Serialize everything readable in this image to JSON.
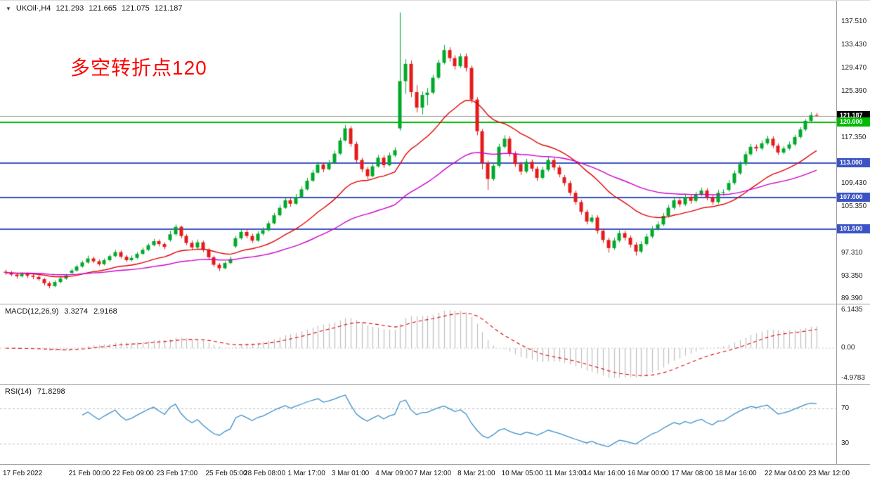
{
  "header": {
    "dropdown_icon": "▼",
    "symbol": "UKOil·,H4",
    "open": "121.293",
    "high": "121.665",
    "low": "121.075",
    "close": "121.187"
  },
  "annotation": {
    "text": "多空转折点120",
    "color": "#fe0000"
  },
  "colors": {
    "background": "#ffffff",
    "candle_up": "#00a82a",
    "candle_down": "#e51a1a",
    "separator": "#9e9e9e",
    "axis_text": "#1a1a1a",
    "current_price_line": "#9a9a9a"
  },
  "chart_data": {
    "type": "candlestick",
    "symbol": "UKOil",
    "timeframe": "H4",
    "price_axis": {
      "max": 137.51,
      "min": 89.39,
      "ticks": [
        "137.510",
        "133.430",
        "129.470",
        "125.390",
        "117.350",
        "109.430",
        "105.350",
        "97.310",
        "93.350",
        "89.390"
      ]
    },
    "current_price": {
      "label": "121.187",
      "value": 121.187,
      "badge_bg": "#000000"
    },
    "levels": [
      {
        "label": "120.000",
        "value": 120.0,
        "color": "#00bb00",
        "width": 2
      },
      {
        "label": "113.000",
        "value": 113.0,
        "color": "#3b53c4",
        "width": 2
      },
      {
        "label": "107.000",
        "value": 107.0,
        "color": "#3b53c4",
        "width": 2
      },
      {
        "label": "101.500",
        "value": 101.5,
        "color": "#3b53c4",
        "width": 2
      }
    ],
    "moving_averages": [
      {
        "name": "ma-fast",
        "period": 21,
        "color": "#e00000"
      },
      {
        "name": "ma-slow",
        "period": 55,
        "color": "#cc00cc"
      }
    ],
    "time_labels": [
      {
        "idx": 0,
        "label": "17 Feb 2022"
      },
      {
        "idx": 12,
        "label": "21 Feb 00:00"
      },
      {
        "idx": 20,
        "label": "22 Feb 09:00"
      },
      {
        "idx": 28,
        "label": "23 Feb 17:00"
      },
      {
        "idx": 37,
        "label": "25 Feb 05:00"
      },
      {
        "idx": 44,
        "label": "28 Feb 08:00"
      },
      {
        "idx": 52,
        "label": "1 Mar 17:00"
      },
      {
        "idx": 60,
        "label": "3 Mar 01:00"
      },
      {
        "idx": 68,
        "label": "4 Mar 09:00"
      },
      {
        "idx": 75,
        "label": "7 Mar 12:00"
      },
      {
        "idx": 83,
        "label": "8 Mar 21:00"
      },
      {
        "idx": 91,
        "label": "10 Mar 05:00"
      },
      {
        "idx": 99,
        "label": "11 Mar 13:00"
      },
      {
        "idx": 106,
        "label": "14 Mar 16:00"
      },
      {
        "idx": 114,
        "label": "16 Mar 00:00"
      },
      {
        "idx": 122,
        "label": "17 Mar 08:00"
      },
      {
        "idx": 130,
        "label": "18 Mar 16:00"
      },
      {
        "idx": 139,
        "label": "22 Mar 04:00"
      },
      {
        "idx": 147,
        "label": "23 Mar 12:00"
      }
    ],
    "candles": [
      [
        94.1,
        94.45,
        93.55,
        93.9
      ],
      [
        93.9,
        94.2,
        93.3,
        93.6
      ],
      [
        93.6,
        93.85,
        92.9,
        93.3
      ],
      [
        93.3,
        94.0,
        93.1,
        93.7
      ],
      [
        93.7,
        93.95,
        93.0,
        93.4
      ],
      [
        93.4,
        93.7,
        92.8,
        93.2
      ],
      [
        93.2,
        93.5,
        92.5,
        92.8
      ],
      [
        92.8,
        93.0,
        91.7,
        92.1
      ],
      [
        92.1,
        92.4,
        91.2,
        91.6
      ],
      [
        91.6,
        92.6,
        91.4,
        92.3
      ],
      [
        92.3,
        93.2,
        92.1,
        92.9
      ],
      [
        92.9,
        93.7,
        92.7,
        93.4
      ],
      [
        93.9,
        94.6,
        93.6,
        94.3
      ],
      [
        94.3,
        95.3,
        94.1,
        95.0
      ],
      [
        95.0,
        96.0,
        94.8,
        95.7
      ],
      [
        95.7,
        96.9,
        95.5,
        96.4
      ],
      [
        96.4,
        96.7,
        95.6,
        95.9
      ],
      [
        95.9,
        96.2,
        95.1,
        95.4
      ],
      [
        95.4,
        96.4,
        95.2,
        96.1
      ],
      [
        96.1,
        97.1,
        95.9,
        96.8
      ],
      [
        96.8,
        97.9,
        96.6,
        97.5
      ],
      [
        97.5,
        97.8,
        96.4,
        96.7
      ],
      [
        96.7,
        97.0,
        95.8,
        96.1
      ],
      [
        96.1,
        96.9,
        95.9,
        96.5
      ],
      [
        96.5,
        97.5,
        96.3,
        97.2
      ],
      [
        97.2,
        98.3,
        97.0,
        97.9
      ],
      [
        97.9,
        99.0,
        97.7,
        98.7
      ],
      [
        98.7,
        99.8,
        98.5,
        99.4
      ],
      [
        99.4,
        99.7,
        98.5,
        98.9
      ],
      [
        98.9,
        99.2,
        98.0,
        98.4
      ],
      [
        99.6,
        101.2,
        99.3,
        100.6
      ],
      [
        100.6,
        102.3,
        100.3,
        101.9
      ],
      [
        101.9,
        102.1,
        99.9,
        100.3
      ],
      [
        100.3,
        100.6,
        98.7,
        99.1
      ],
      [
        99.1,
        99.5,
        97.9,
        98.3
      ],
      [
        98.3,
        99.7,
        98.1,
        99.2
      ],
      [
        99.2,
        99.5,
        97.5,
        97.9
      ],
      [
        97.9,
        98.2,
        96.2,
        96.6
      ],
      [
        96.6,
        96.9,
        94.9,
        95.3
      ],
      [
        95.3,
        95.6,
        94.2,
        94.7
      ],
      [
        94.7,
        95.9,
        94.5,
        95.6
      ],
      [
        95.6,
        96.7,
        95.4,
        96.3
      ],
      [
        98.5,
        100.3,
        98.2,
        99.9
      ],
      [
        99.9,
        101.5,
        99.7,
        101.0
      ],
      [
        101.0,
        101.4,
        99.9,
        100.3
      ],
      [
        100.3,
        100.7,
        99.1,
        99.5
      ],
      [
        99.5,
        101.1,
        99.3,
        100.7
      ],
      [
        100.7,
        101.8,
        100.4,
        101.3
      ],
      [
        101.3,
        102.9,
        101.1,
        102.5
      ],
      [
        102.5,
        104.3,
        102.3,
        103.9
      ],
      [
        103.9,
        105.7,
        103.7,
        105.2
      ],
      [
        105.2,
        107.0,
        105.0,
        106.5
      ],
      [
        106.5,
        106.9,
        105.4,
        105.9
      ],
      [
        105.9,
        107.6,
        105.7,
        107.1
      ],
      [
        107.1,
        108.9,
        106.9,
        108.4
      ],
      [
        108.4,
        110.4,
        108.2,
        109.9
      ],
      [
        109.9,
        111.8,
        109.7,
        111.3
      ],
      [
        111.3,
        113.2,
        111.1,
        112.7
      ],
      [
        112.7,
        113.1,
        111.4,
        111.9
      ],
      [
        111.9,
        113.5,
        111.7,
        113.0
      ],
      [
        113.0,
        115.1,
        112.8,
        114.6
      ],
      [
        114.6,
        117.4,
        114.4,
        116.9
      ],
      [
        116.9,
        119.6,
        116.7,
        119.0
      ],
      [
        119.0,
        119.4,
        115.8,
        116.3
      ],
      [
        116.3,
        116.7,
        113.0,
        113.5
      ],
      [
        113.5,
        113.9,
        111.4,
        111.9
      ],
      [
        111.9,
        112.3,
        110.2,
        110.7
      ],
      [
        110.7,
        112.9,
        110.5,
        112.4
      ],
      [
        112.4,
        114.4,
        112.2,
        113.9
      ],
      [
        113.9,
        114.3,
        112.1,
        112.6
      ],
      [
        112.6,
        114.8,
        112.4,
        114.3
      ],
      [
        114.3,
        115.7,
        114.0,
        115.2
      ],
      [
        119.0,
        139.13,
        118.6,
        127.2
      ],
      [
        127.2,
        131.0,
        125.0,
        130.2
      ],
      [
        130.2,
        130.8,
        124.4,
        125.3
      ],
      [
        125.3,
        126.5,
        121.8,
        122.6
      ],
      [
        122.6,
        125.4,
        121.4,
        124.8
      ],
      [
        124.8,
        126.0,
        123.0,
        125.2
      ],
      [
        125.2,
        128.3,
        124.9,
        127.8
      ],
      [
        127.8,
        130.9,
        127.5,
        130.4
      ],
      [
        130.4,
        133.5,
        130.1,
        132.6
      ],
      [
        132.6,
        133.1,
        130.6,
        131.2
      ],
      [
        131.2,
        131.7,
        129.2,
        129.8
      ],
      [
        129.8,
        132.0,
        129.5,
        131.5
      ],
      [
        131.5,
        132.0,
        128.9,
        129.5
      ],
      [
        129.5,
        129.9,
        123.4,
        124.0
      ],
      [
        124.0,
        124.4,
        117.8,
        118.5
      ],
      [
        118.5,
        118.9,
        111.9,
        113.0
      ],
      [
        113.0,
        113.4,
        108.3,
        110.2
      ],
      [
        110.2,
        113.1,
        109.9,
        112.5
      ],
      [
        112.5,
        116.3,
        112.2,
        115.8
      ],
      [
        115.8,
        117.8,
        115.5,
        117.2
      ],
      [
        117.2,
        117.6,
        114.1,
        114.6
      ],
      [
        114.6,
        115.0,
        112.3,
        112.8
      ],
      [
        112.8,
        113.2,
        110.9,
        111.5
      ],
      [
        111.5,
        113.7,
        111.2,
        113.2
      ],
      [
        113.2,
        113.6,
        111.5,
        112.0
      ],
      [
        112.0,
        112.4,
        109.9,
        110.4
      ],
      [
        110.4,
        112.3,
        110.1,
        111.8
      ],
      [
        111.8,
        114.0,
        111.5,
        113.5
      ],
      [
        113.5,
        113.9,
        111.7,
        112.2
      ],
      [
        112.2,
        112.6,
        110.5,
        111.0
      ],
      [
        110.5,
        110.9,
        109.0,
        109.5
      ],
      [
        109.5,
        109.9,
        107.3,
        107.8
      ],
      [
        107.8,
        108.2,
        105.7,
        106.2
      ],
      [
        106.2,
        106.6,
        104.0,
        104.5
      ],
      [
        104.5,
        104.9,
        102.3,
        102.8
      ],
      [
        102.8,
        104.0,
        102.5,
        103.5
      ],
      [
        103.5,
        103.9,
        100.7,
        101.2
      ],
      [
        101.2,
        101.6,
        99.1,
        99.6
      ],
      [
        99.6,
        100.0,
        97.4,
        98.2
      ],
      [
        98.2,
        100.0,
        97.9,
        99.5
      ],
      [
        99.5,
        101.3,
        99.2,
        100.8
      ],
      [
        100.8,
        101.2,
        99.5,
        100.0
      ],
      [
        100.0,
        100.4,
        98.3,
        98.8
      ],
      [
        98.8,
        99.2,
        96.9,
        97.6
      ],
      [
        97.6,
        99.4,
        97.3,
        98.9
      ],
      [
        98.9,
        100.7,
        98.6,
        100.2
      ],
      [
        100.2,
        102.0,
        99.9,
        101.5
      ],
      [
        101.5,
        102.8,
        101.2,
        102.3
      ],
      [
        102.3,
        104.3,
        102.0,
        103.8
      ],
      [
        103.8,
        105.7,
        103.5,
        105.2
      ],
      [
        105.2,
        107.0,
        104.9,
        106.5
      ],
      [
        106.5,
        106.9,
        105.3,
        105.8
      ],
      [
        105.8,
        107.6,
        105.5,
        107.1
      ],
      [
        107.1,
        107.5,
        105.9,
        106.4
      ],
      [
        106.4,
        108.0,
        106.1,
        107.5
      ],
      [
        107.5,
        108.7,
        107.2,
        108.2
      ],
      [
        108.2,
        108.6,
        106.5,
        107.0
      ],
      [
        107.0,
        107.4,
        105.7,
        106.2
      ],
      [
        106.2,
        108.3,
        105.9,
        107.8
      ],
      [
        107.8,
        108.4,
        107.3,
        107.9
      ],
      [
        108.3,
        110.0,
        108.0,
        109.5
      ],
      [
        109.5,
        111.7,
        109.2,
        111.2
      ],
      [
        111.2,
        113.3,
        110.9,
        112.8
      ],
      [
        112.8,
        115.0,
        112.5,
        114.5
      ],
      [
        114.5,
        116.3,
        114.2,
        115.8
      ],
      [
        115.8,
        116.2,
        115.0,
        115.5
      ],
      [
        115.5,
        116.9,
        115.2,
        116.4
      ],
      [
        116.4,
        117.7,
        116.1,
        117.2
      ],
      [
        117.2,
        117.6,
        115.6,
        116.0
      ],
      [
        116.0,
        116.4,
        114.4,
        114.8
      ],
      [
        114.8,
        115.9,
        114.5,
        115.5
      ],
      [
        115.5,
        116.7,
        115.2,
        116.2
      ],
      [
        116.2,
        117.9,
        115.9,
        117.5
      ],
      [
        117.5,
        119.2,
        117.2,
        118.8
      ],
      [
        118.8,
        120.6,
        118.5,
        120.3
      ],
      [
        120.3,
        121.8,
        119.9,
        121.3
      ],
      [
        121.293,
        121.665,
        121.075,
        121.187
      ]
    ],
    "indicators": {
      "macd": {
        "title": "MACD(12,26,9)",
        "value": "3.3274",
        "signal_value": "2.9168",
        "fast_period": 12,
        "slow_period": 26,
        "signal_period": 9,
        "axis_labels": [
          "6.1435",
          "0.00",
          "-4.9783"
        ],
        "histogram_color": "#bdbdbd",
        "signal_color": "#e00000"
      },
      "rsi": {
        "title": "RSI(14)",
        "value": "71.8298",
        "period": 14,
        "levels": [
          70,
          30
        ],
        "level_labels": [
          "70",
          "30"
        ],
        "line_color": "#3a8fc7",
        "level_line_color": "#b8b8b8"
      }
    }
  }
}
